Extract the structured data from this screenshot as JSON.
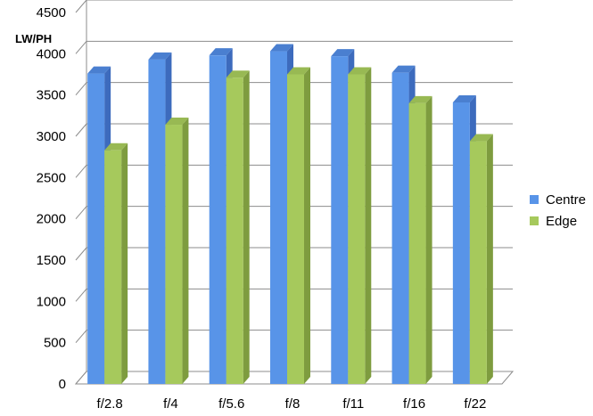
{
  "chart_data": {
    "type": "bar",
    "categories": [
      "f/2.8",
      "f/4",
      "f/5.6",
      "f/8",
      "f/11",
      "f/16",
      "f/22"
    ],
    "series": [
      {
        "name": "Centre",
        "values": [
          3760,
          3930,
          3980,
          4030,
          3970,
          3770,
          3410
        ],
        "color": "#5894e8",
        "top_color": "#4a7fd0",
        "side_color": "#3d6bbd"
      },
      {
        "name": "Edge",
        "values": [
          2830,
          3140,
          3710,
          3750,
          3750,
          3400,
          2940
        ],
        "color": "#a6c95c",
        "top_color": "#98b953",
        "side_color": "#7e9c3f"
      }
    ],
    "title": "",
    "ylabel": "LW/PH",
    "xlabel": "",
    "ylim": [
      0,
      4500
    ],
    "yticks": [
      0,
      500,
      1000,
      1500,
      2000,
      2500,
      3000,
      3500,
      4000,
      4500
    ],
    "grid": true,
    "legend": "right"
  }
}
